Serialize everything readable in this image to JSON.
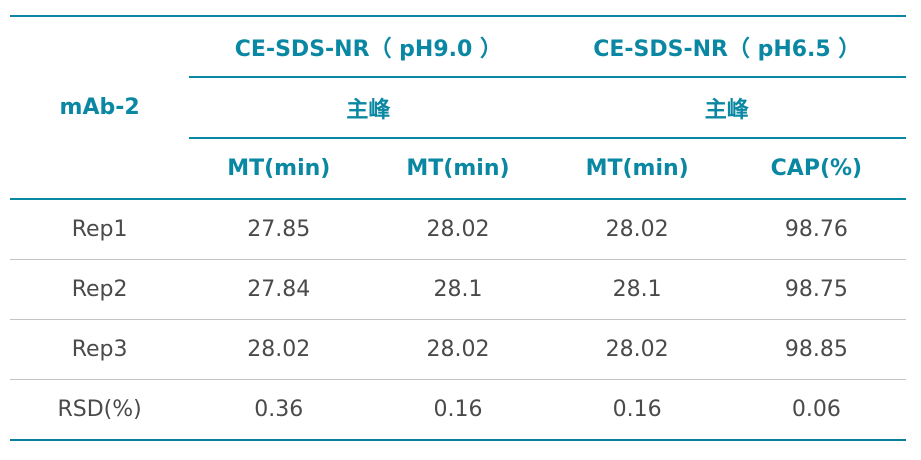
{
  "table": {
    "corner": "mAb-2",
    "groups": [
      "CE-SDS-NR（ pH9.0 ）",
      "CE-SDS-NR（ pH6.5 ）"
    ],
    "subgroups": [
      "主峰",
      "主峰"
    ],
    "columns": [
      "MT(min)",
      "MT(min)",
      "MT(min)",
      "CAP(%)"
    ],
    "rows": [
      {
        "label": "Rep1",
        "values": [
          "27.85",
          "28.02",
          "28.02",
          "98.76"
        ]
      },
      {
        "label": "Rep2",
        "values": [
          "27.84",
          "28.1",
          "28.1",
          "98.75"
        ]
      },
      {
        "label": "Rep3",
        "values": [
          "28.02",
          "28.02",
          "28.02",
          "98.85"
        ]
      },
      {
        "label": "RSD(%)",
        "values": [
          "0.36",
          "0.16",
          "0.16",
          "0.06"
        ]
      }
    ],
    "colors": {
      "header": "#0a87a2",
      "body_text": "#4a4a4a",
      "row_divider": "#c4c4c4"
    }
  }
}
